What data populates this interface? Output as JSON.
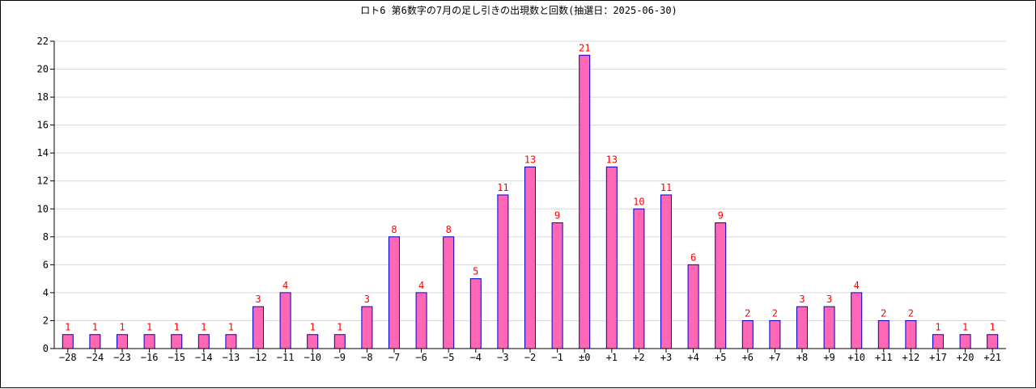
{
  "chart_data": {
    "type": "bar",
    "title": "ロト6 第6数字の7月の足し引きの出現数と回数(抽選日：2025-06-30)",
    "xlabel": "",
    "ylabel": "",
    "ylim": [
      0,
      22
    ],
    "yticks": [
      0,
      2,
      4,
      6,
      8,
      10,
      12,
      14,
      16,
      18,
      20,
      22
    ],
    "grid": true,
    "categories": [
      "−28",
      "−24",
      "−23",
      "−16",
      "−15",
      "−14",
      "−13",
      "−12",
      "−11",
      "−10",
      "−9",
      "−8",
      "−7",
      "−6",
      "−5",
      "−4",
      "−3",
      "−2",
      "−1",
      "±0",
      "+1",
      "+2",
      "+3",
      "+4",
      "+5",
      "+6",
      "+7",
      "+8",
      "+9",
      "+10",
      "+11",
      "+12",
      "+17",
      "+20",
      "+21"
    ],
    "values": [
      1,
      1,
      1,
      1,
      1,
      1,
      1,
      3,
      4,
      1,
      1,
      3,
      8,
      4,
      8,
      5,
      11,
      13,
      9,
      21,
      13,
      10,
      11,
      6,
      9,
      2,
      2,
      3,
      3,
      4,
      2,
      2,
      1,
      1,
      1
    ],
    "colors": {
      "bar_fill": "#ff66b3",
      "bar_stroke": "#0000cc",
      "label": "#ff0000",
      "grid": "#d9d9d9",
      "axis": "#000000"
    }
  }
}
